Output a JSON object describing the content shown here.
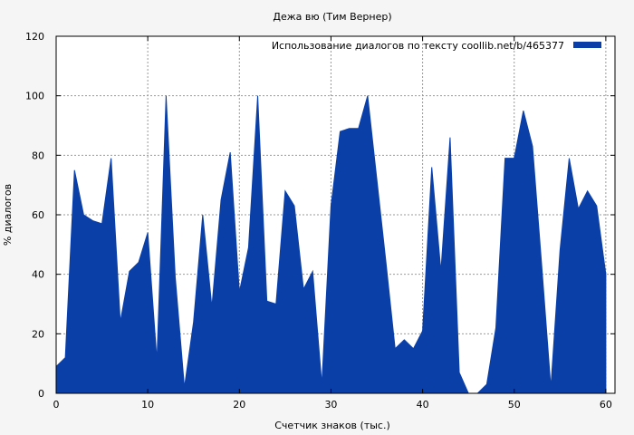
{
  "chart_data": {
    "type": "area",
    "title": "Дежа вю (Тим Вернер)",
    "xlabel": "Счетчик знаков (тыс.)",
    "ylabel": "% диалогов",
    "xlim": [
      0,
      61
    ],
    "ylim": [
      0,
      120
    ],
    "xticks": [
      0,
      10,
      20,
      30,
      40,
      50,
      60
    ],
    "yticks": [
      0,
      20,
      40,
      60,
      80,
      100,
      120
    ],
    "grid": true,
    "legend_position": "top-right",
    "colors": {
      "series": "#0a3fa8",
      "background": "#f5f5f5",
      "plot_background": "#ffffff",
      "grid": "#999999"
    },
    "series": [
      {
        "name": "Использование диалогов по тексту  coollib.net/b/465377",
        "x": [
          0,
          1,
          2,
          3,
          4,
          5,
          6,
          7,
          8,
          9,
          10,
          11,
          12,
          13,
          14,
          15,
          16,
          17,
          18,
          19,
          20,
          21,
          22,
          23,
          24,
          25,
          26,
          27,
          28,
          29,
          30,
          31,
          32,
          33,
          34,
          35,
          36,
          37,
          38,
          39,
          40,
          41,
          42,
          43,
          44,
          45,
          46,
          47,
          48,
          49,
          50,
          51,
          52,
          53,
          54,
          55,
          56,
          57,
          58,
          59,
          60
        ],
        "values": [
          9,
          12,
          75,
          60,
          58,
          57,
          79,
          24,
          41,
          44,
          54,
          11,
          100,
          39,
          2,
          24,
          60,
          29,
          65,
          81,
          34,
          49,
          100,
          31,
          30,
          68,
          63,
          35,
          41,
          3,
          63,
          88,
          89,
          89,
          100,
          72,
          44,
          15,
          18,
          15,
          21,
          76,
          41,
          86,
          7,
          0,
          0,
          3,
          22,
          79,
          79,
          95,
          83,
          43,
          2,
          48,
          79,
          62,
          68,
          63,
          40
        ]
      }
    ]
  }
}
